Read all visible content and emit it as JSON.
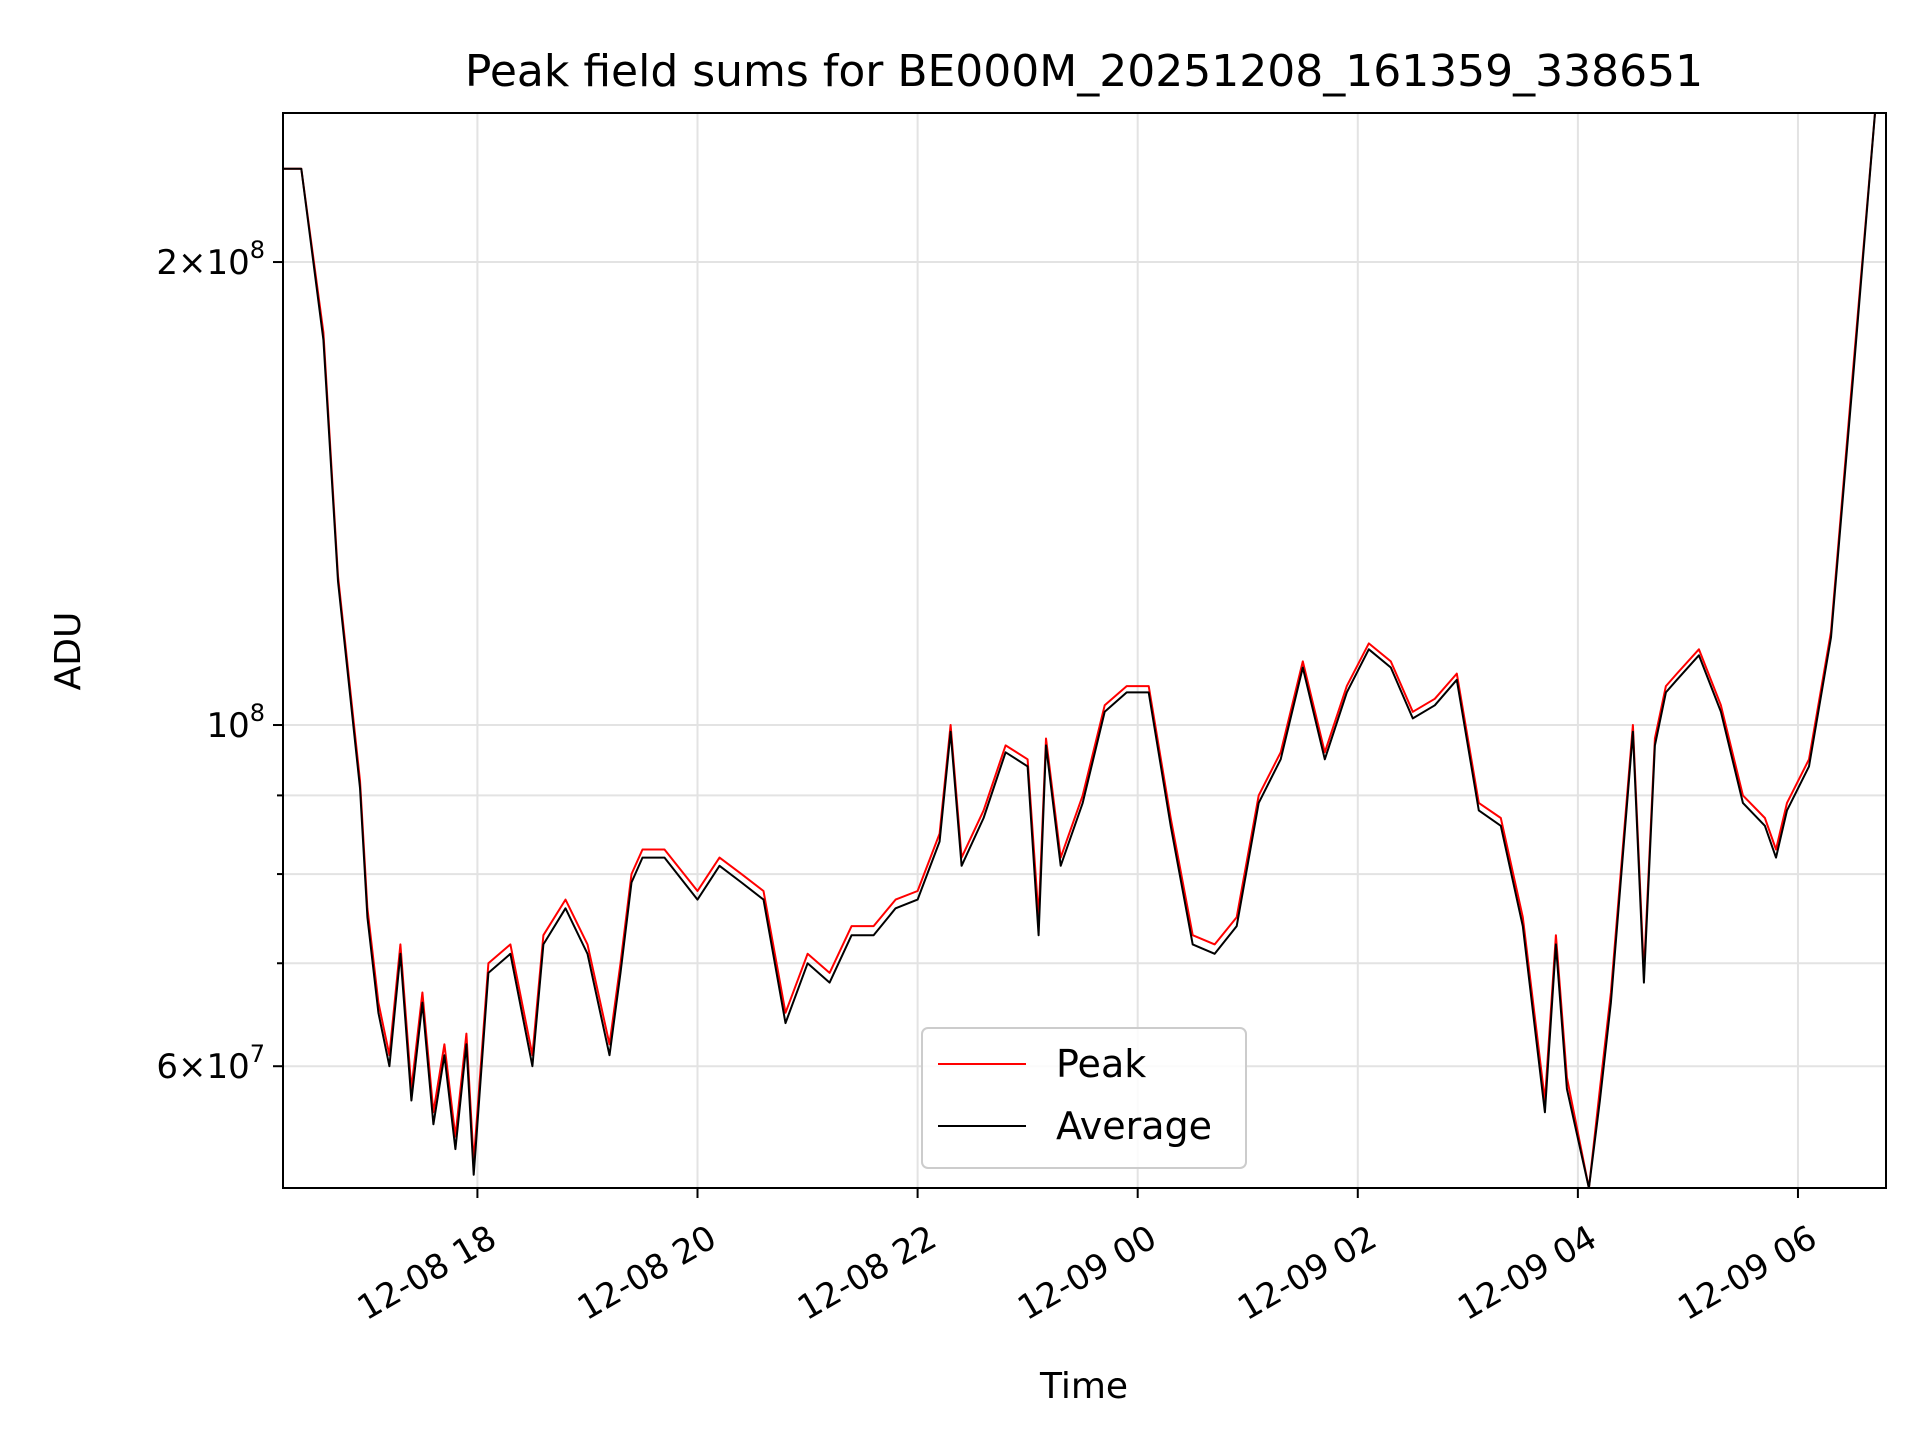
{
  "chart_data": {
    "type": "line",
    "title": "Peak field sums for BE000M_20251208_161359_338651",
    "xlabel": "Time",
    "ylabel": "ADU",
    "yscale": "log",
    "grid": true,
    "legend_position": "lower center",
    "xlim": [
      "2025-12-08 16:14",
      "2025-12-09 06:48"
    ],
    "ylim": [
      50000000,
      250000000
    ],
    "x_ticks": [
      "12-08 18",
      "12-08 20",
      "12-08 22",
      "12-09 00",
      "12-09 02",
      "12-09 04",
      "12-09 06"
    ],
    "y_ticks_major": [
      {
        "value": 100000000,
        "base": "10",
        "exp": "8",
        "coef": ""
      },
      {
        "value": 200000000,
        "base": "10",
        "exp": "8",
        "coef": "2"
      },
      {
        "value": 60000000,
        "base": "10",
        "exp": "7",
        "coef": "6"
      }
    ],
    "series": [
      {
        "name": "Peak",
        "color": "#ff0000",
        "x": [
          "2025-12-08 16:14",
          "2025-12-08 16:24",
          "2025-12-08 16:36",
          "2025-12-08 16:44",
          "2025-12-08 16:56",
          "2025-12-08 17:00",
          "2025-12-08 17:06",
          "2025-12-08 17:12",
          "2025-12-08 17:18",
          "2025-12-08 17:24",
          "2025-12-08 17:30",
          "2025-12-08 17:36",
          "2025-12-08 17:42",
          "2025-12-08 17:48",
          "2025-12-08 17:54",
          "2025-12-08 17:58",
          "2025-12-08 18:06",
          "2025-12-08 18:18",
          "2025-12-08 18:30",
          "2025-12-08 18:36",
          "2025-12-08 18:48",
          "2025-12-08 19:00",
          "2025-12-08 19:12",
          "2025-12-08 19:18",
          "2025-12-08 19:24",
          "2025-12-08 19:30",
          "2025-12-08 19:42",
          "2025-12-08 20:00",
          "2025-12-08 20:12",
          "2025-12-08 20:24",
          "2025-12-08 20:36",
          "2025-12-08 20:48",
          "2025-12-08 21:00",
          "2025-12-08 21:12",
          "2025-12-08 21:24",
          "2025-12-08 21:36",
          "2025-12-08 21:48",
          "2025-12-08 22:00",
          "2025-12-08 22:12",
          "2025-12-08 22:18",
          "2025-12-08 22:24",
          "2025-12-08 22:36",
          "2025-12-08 22:48",
          "2025-12-08 23:00",
          "2025-12-08 23:06",
          "2025-12-08 23:10",
          "2025-12-08 23:18",
          "2025-12-08 23:30",
          "2025-12-08 23:42",
          "2025-12-08 23:54",
          "2025-12-09 00:06",
          "2025-12-09 00:18",
          "2025-12-09 00:30",
          "2025-12-09 00:42",
          "2025-12-09 00:54",
          "2025-12-09 01:06",
          "2025-12-09 01:18",
          "2025-12-09 01:30",
          "2025-12-09 01:42",
          "2025-12-09 01:54",
          "2025-12-09 02:06",
          "2025-12-09 02:18",
          "2025-12-09 02:30",
          "2025-12-09 02:42",
          "2025-12-09 02:54",
          "2025-12-09 03:06",
          "2025-12-09 03:18",
          "2025-12-09 03:30",
          "2025-12-09 03:42",
          "2025-12-09 03:48",
          "2025-12-09 03:54",
          "2025-12-09 04:06",
          "2025-12-09 04:12",
          "2025-12-09 04:18",
          "2025-12-09 04:30",
          "2025-12-09 04:36",
          "2025-12-09 04:42",
          "2025-12-09 04:48",
          "2025-12-09 04:54",
          "2025-12-09 05:06",
          "2025-12-09 05:18",
          "2025-12-09 05:30",
          "2025-12-09 05:42",
          "2025-12-09 05:48",
          "2025-12-09 05:54",
          "2025-12-09 06:06",
          "2025-12-09 06:18",
          "2025-12-09 06:30",
          "2025-12-09 06:42",
          "2025-12-09 06:48"
        ],
        "values": [
          230000000,
          230000000,
          180000000,
          125000000,
          92000000,
          76000000,
          66000000,
          61000000,
          72000000,
          58000000,
          67000000,
          56000000,
          62000000,
          54000000,
          63000000,
          52000000,
          70000000,
          72000000,
          61000000,
          73000000,
          77000000,
          72000000,
          62000000,
          70000000,
          80000000,
          83000000,
          83000000,
          78000000,
          82000000,
          80000000,
          78000000,
          65000000,
          71000000,
          69000000,
          74000000,
          74000000,
          77000000,
          78000000,
          85000000,
          100000000,
          82000000,
          88000000,
          97000000,
          95000000,
          75000000,
          98000000,
          82000000,
          90000000,
          103000000,
          106000000,
          106000000,
          87000000,
          73000000,
          72000000,
          75000000,
          90000000,
          96000000,
          110000000,
          96000000,
          106000000,
          113000000,
          110000000,
          102000000,
          104000000,
          108000000,
          89000000,
          87000000,
          75000000,
          57000000,
          73000000,
          59000000,
          48000000,
          58000000,
          67000000,
          100000000,
          69000000,
          98000000,
          106000000,
          108000000,
          112000000,
          103000000,
          90000000,
          87000000,
          83000000,
          89000000,
          95000000,
          115000000,
          170000000,
          250000000,
          250000000
        ]
      },
      {
        "name": "Average",
        "color": "#000000",
        "x": [
          "2025-12-08 16:14",
          "2025-12-08 16:24",
          "2025-12-08 16:36",
          "2025-12-08 16:44",
          "2025-12-08 16:56",
          "2025-12-08 17:00",
          "2025-12-08 17:06",
          "2025-12-08 17:12",
          "2025-12-08 17:18",
          "2025-12-08 17:24",
          "2025-12-08 17:30",
          "2025-12-08 17:36",
          "2025-12-08 17:42",
          "2025-12-08 17:48",
          "2025-12-08 17:54",
          "2025-12-08 17:58",
          "2025-12-08 18:06",
          "2025-12-08 18:18",
          "2025-12-08 18:30",
          "2025-12-08 18:36",
          "2025-12-08 18:48",
          "2025-12-08 19:00",
          "2025-12-08 19:12",
          "2025-12-08 19:18",
          "2025-12-08 19:24",
          "2025-12-08 19:30",
          "2025-12-08 19:42",
          "2025-12-08 20:00",
          "2025-12-08 20:12",
          "2025-12-08 20:24",
          "2025-12-08 20:36",
          "2025-12-08 20:48",
          "2025-12-08 21:00",
          "2025-12-08 21:12",
          "2025-12-08 21:24",
          "2025-12-08 21:36",
          "2025-12-08 21:48",
          "2025-12-08 22:00",
          "2025-12-08 22:12",
          "2025-12-08 22:18",
          "2025-12-08 22:24",
          "2025-12-08 22:36",
          "2025-12-08 22:48",
          "2025-12-08 23:00",
          "2025-12-08 23:06",
          "2025-12-08 23:10",
          "2025-12-08 23:18",
          "2025-12-08 23:30",
          "2025-12-08 23:42",
          "2025-12-08 23:54",
          "2025-12-09 00:06",
          "2025-12-09 00:18",
          "2025-12-09 00:30",
          "2025-12-09 00:42",
          "2025-12-09 00:54",
          "2025-12-09 01:06",
          "2025-12-09 01:18",
          "2025-12-09 01:30",
          "2025-12-09 01:42",
          "2025-12-09 01:54",
          "2025-12-09 02:06",
          "2025-12-09 02:18",
          "2025-12-09 02:30",
          "2025-12-09 02:42",
          "2025-12-09 02:54",
          "2025-12-09 03:06",
          "2025-12-09 03:18",
          "2025-12-09 03:30",
          "2025-12-09 03:42",
          "2025-12-09 03:48",
          "2025-12-09 03:54",
          "2025-12-09 04:06",
          "2025-12-09 04:12",
          "2025-12-09 04:18",
          "2025-12-09 04:30",
          "2025-12-09 04:36",
          "2025-12-09 04:42",
          "2025-12-09 04:48",
          "2025-12-09 04:54",
          "2025-12-09 05:06",
          "2025-12-09 05:18",
          "2025-12-09 05:30",
          "2025-12-09 05:42",
          "2025-12-09 05:48",
          "2025-12-09 05:54",
          "2025-12-09 06:06",
          "2025-12-09 06:18",
          "2025-12-09 06:30",
          "2025-12-09 06:42",
          "2025-12-09 06:48"
        ],
        "values": [
          230000000,
          230000000,
          178000000,
          124000000,
          91000000,
          75000000,
          65000000,
          60000000,
          71000000,
          57000000,
          66000000,
          55000000,
          61000000,
          53000000,
          62000000,
          51000000,
          69000000,
          71000000,
          60000000,
          72000000,
          76000000,
          71000000,
          61000000,
          69000000,
          79000000,
          82000000,
          82000000,
          77000000,
          81000000,
          79000000,
          77000000,
          64000000,
          70000000,
          68000000,
          73000000,
          73000000,
          76000000,
          77000000,
          84000000,
          99000000,
          81000000,
          87000000,
          96000000,
          94000000,
          73000000,
          97000000,
          81000000,
          89000000,
          102000000,
          105000000,
          105000000,
          86000000,
          72000000,
          71000000,
          74000000,
          89000000,
          95000000,
          109000000,
          95000000,
          105000000,
          112000000,
          109000000,
          101000000,
          103000000,
          107000000,
          88000000,
          86000000,
          74000000,
          56000000,
          72000000,
          58000000,
          47500000,
          57000000,
          66000000,
          99000000,
          68000000,
          97000000,
          105000000,
          107000000,
          111000000,
          102000000,
          89000000,
          86000000,
          82000000,
          88000000,
          94000000,
          114000000,
          168000000,
          250000000,
          250000000
        ]
      }
    ]
  }
}
